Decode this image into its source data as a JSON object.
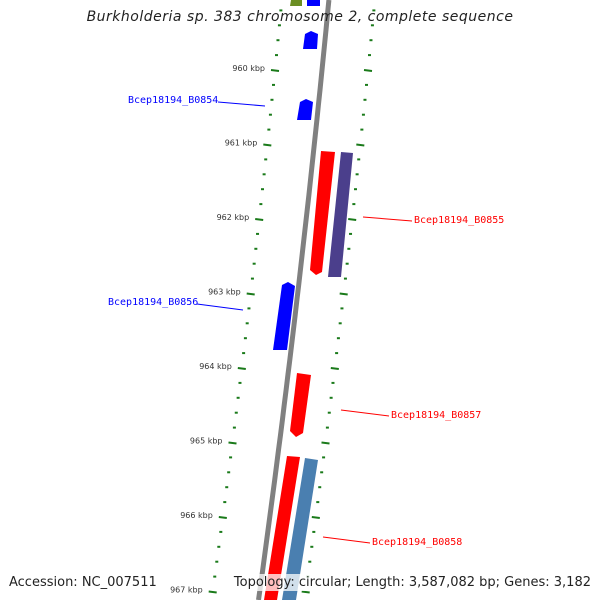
{
  "title": "Burkholderia sp. 383 chromosome 2, complete sequence",
  "footer": {
    "accession": "Accession: NC_007511",
    "topology": "Topology: circular; Length: 3,587,082 bp; Genes: 3,182"
  },
  "ticks": {
    "major_kbp": [
      960,
      961,
      962,
      963,
      964,
      965,
      966,
      967
    ],
    "labels": [
      "960 kbp",
      "961 kbp",
      "962 kbp",
      "963 kbp",
      "964 kbp",
      "965 kbp",
      "966 kbp",
      "967 kbp"
    ],
    "color": "#1a7a1a"
  },
  "genes": [
    {
      "name": "Bcep18194_B0854",
      "color": "#0000ff"
    },
    {
      "name": "Bcep18194_B0855",
      "color": "#ff0000"
    },
    {
      "name": "Bcep18194_B0856",
      "color": "#0000ff"
    },
    {
      "name": "Bcep18194_B0857",
      "color": "#ff0000"
    },
    {
      "name": "Bcep18194_B0858",
      "color": "#ff0000"
    }
  ],
  "colors": {
    "backbone": "#808080",
    "forward": "#0000ff",
    "reverse": "#ff0000",
    "purple": "#4b3f8c",
    "steel": "#4a7fb0",
    "olive": "#6b8e23"
  }
}
